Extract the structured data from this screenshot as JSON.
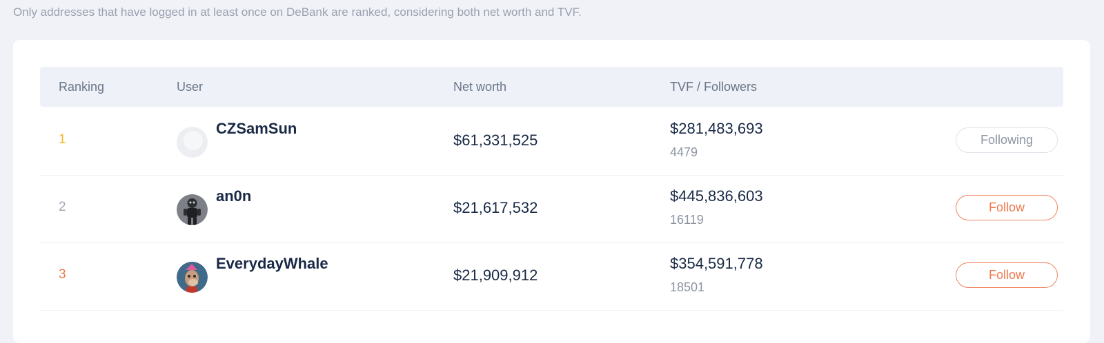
{
  "note": "Only addresses that have logged in at least once on DeBank are ranked, considering both net worth and TVF.",
  "table": {
    "headers": {
      "ranking": "Ranking",
      "user": "User",
      "net_worth": "Net worth",
      "tvf_followers": "TVF / Followers"
    },
    "rows": [
      {
        "rank": "1",
        "rank_color": "#f5b72c",
        "name": "CZSamSun",
        "net_worth": "$61,331,525",
        "tvf": "$281,483,693",
        "followers": "4479",
        "button": "Following",
        "avatar_icon": "avatar-blank"
      },
      {
        "rank": "2",
        "rank_color": "#a3a9b5",
        "name": "an0n",
        "net_worth": "$21,617,532",
        "tvf": "$445,836,603",
        "followers": "16119",
        "button": "Follow",
        "avatar_icon": "avatar-figure"
      },
      {
        "rank": "3",
        "rank_color": "#f07a4e",
        "name": "EverydayWhale",
        "net_worth": "$21,909,912",
        "tvf": "$354,591,778",
        "followers": "18501",
        "button": "Follow",
        "avatar_icon": "avatar-ape"
      }
    ]
  },
  "colors": {
    "accent": "#f07a4e",
    "gold": "#f5b72c",
    "background": "#f0f2f7"
  }
}
